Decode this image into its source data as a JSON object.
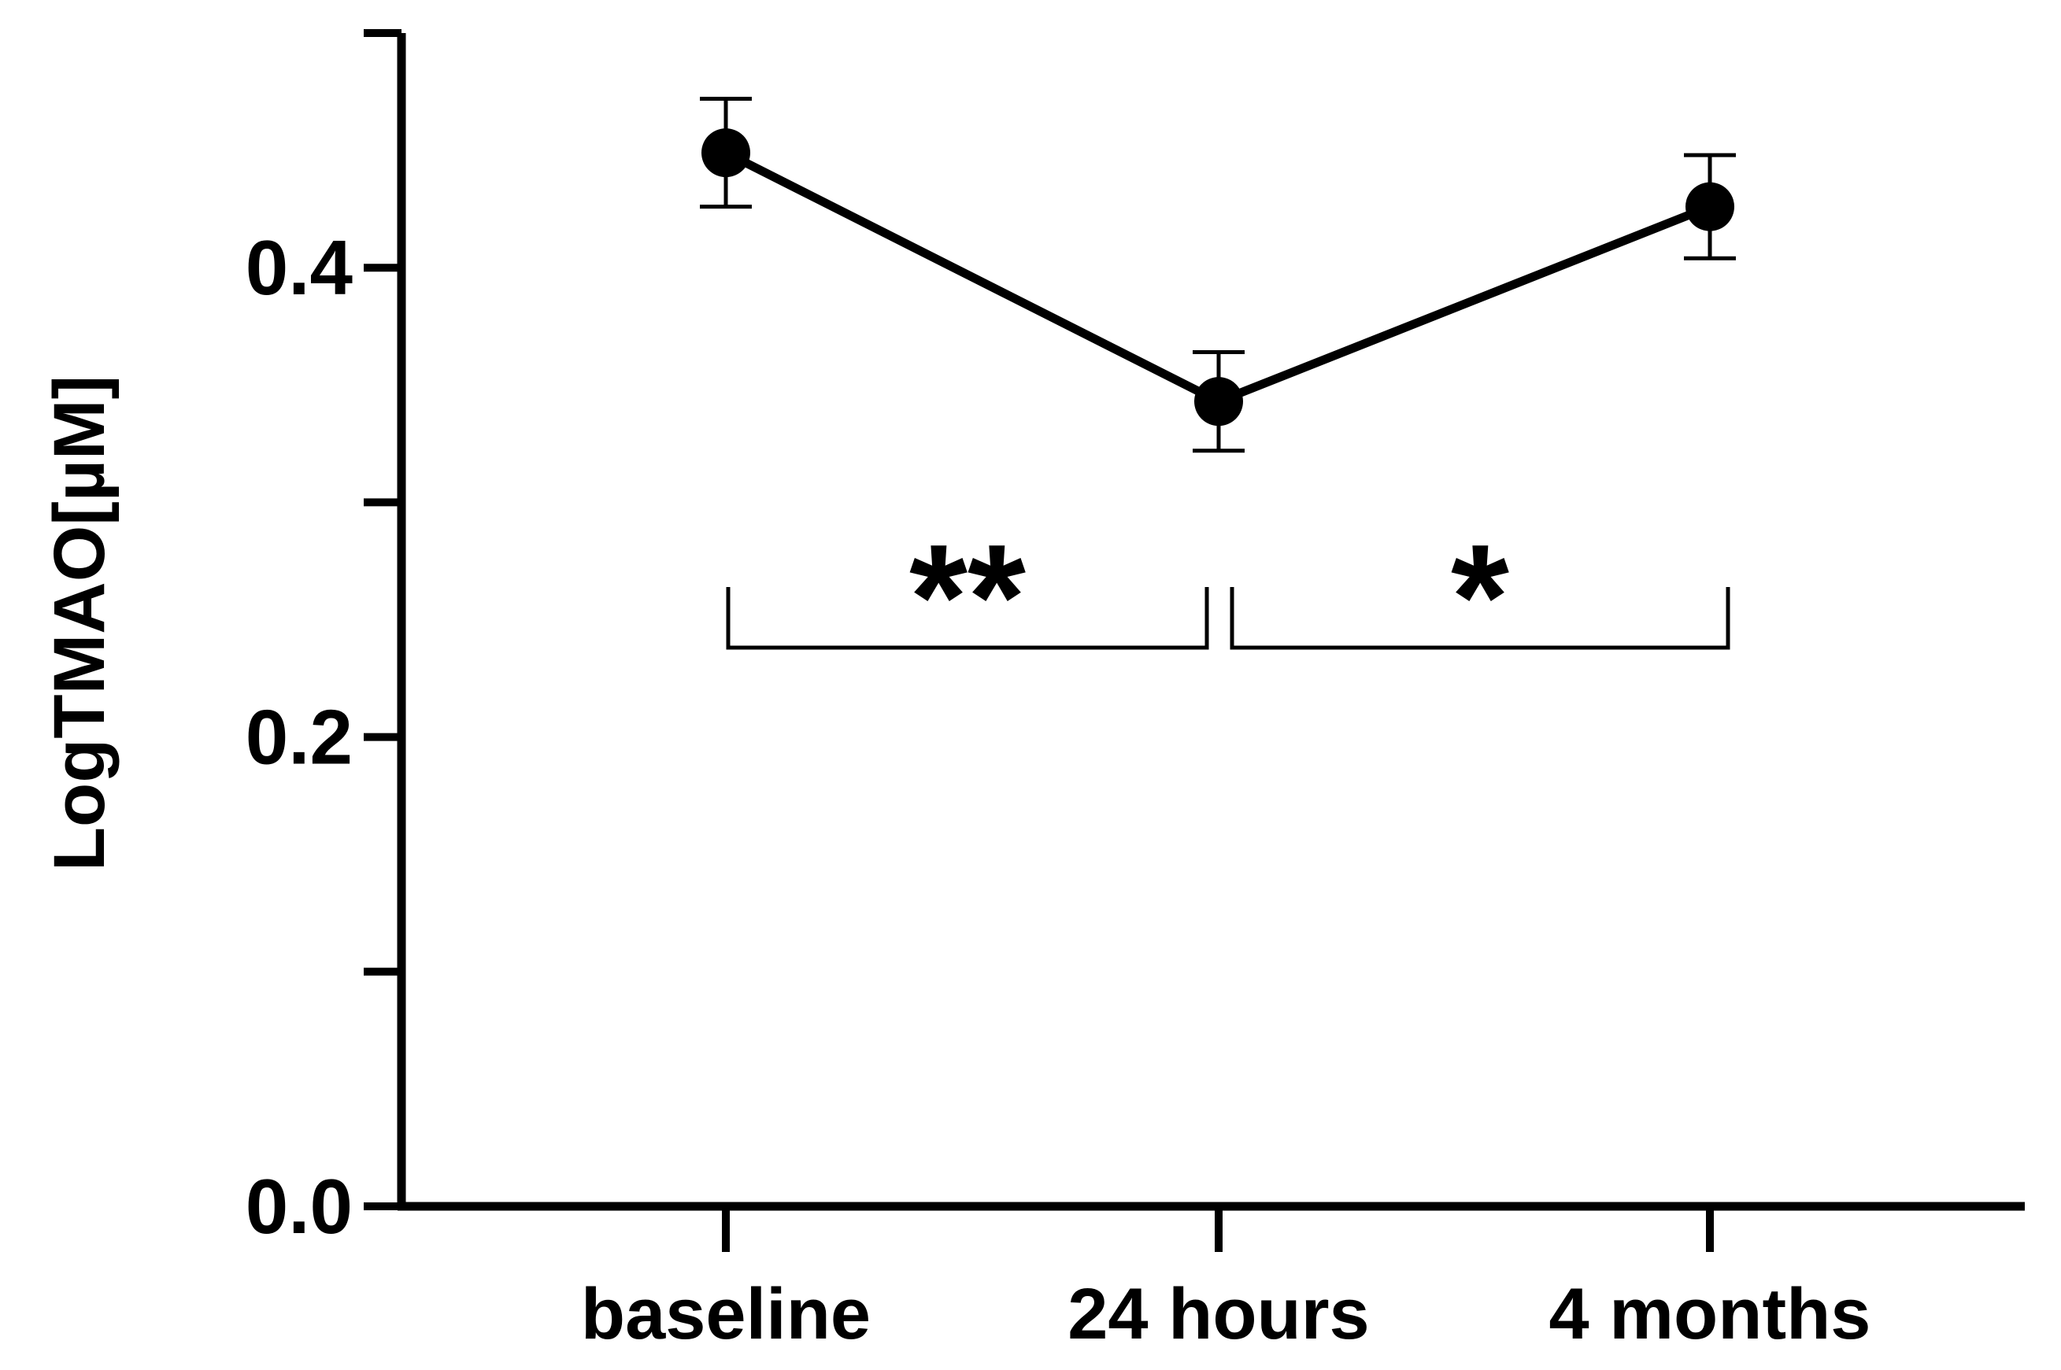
{
  "chart_data": {
    "type": "line",
    "title": "",
    "xlabel": "",
    "ylabel": "LogTMAO[µM]",
    "categories": [
      "baseline",
      "24 hours",
      "4 months"
    ],
    "series": [
      {
        "values": [
          0.449,
          0.343,
          0.426
        ],
        "error": [
          0.023,
          0.021,
          0.022
        ]
      }
    ],
    "ylim": [
      0.0,
      0.5
    ],
    "yticks_major": [
      0.0,
      0.2,
      0.4
    ],
    "yticks_minor": [
      0.1,
      0.3,
      0.5
    ],
    "ytick_labels": [
      "0.0",
      "0.2",
      "0.4"
    ],
    "grid": false,
    "significance": [
      {
        "from": "baseline",
        "to": "24 hours",
        "label": "**"
      },
      {
        "from": "24 hours",
        "to": "4 months",
        "label": "*"
      }
    ],
    "colors": {
      "line": "#000000",
      "marker": "#000000"
    }
  }
}
